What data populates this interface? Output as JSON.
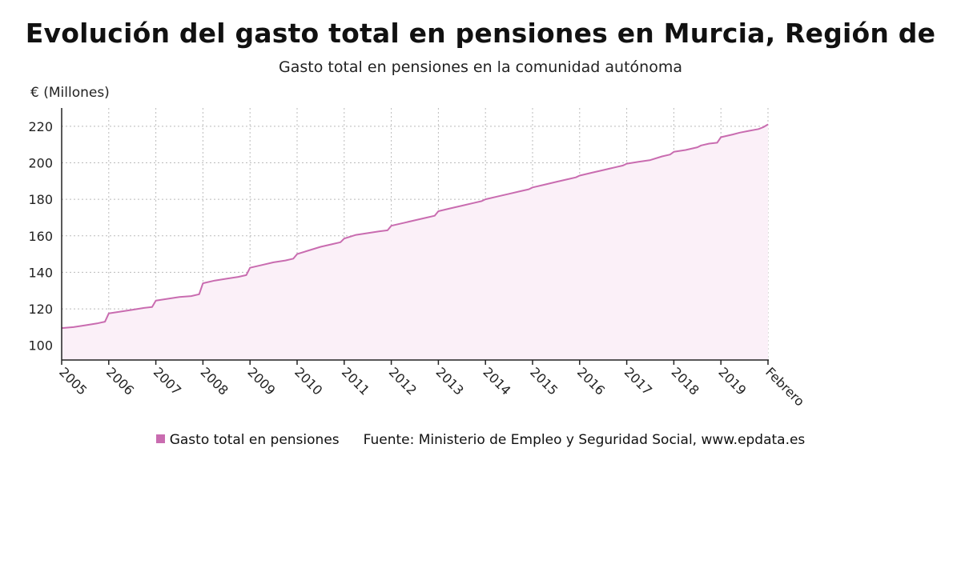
{
  "chart_data": {
    "type": "area",
    "title": "Evolución del gasto total en pensiones en Murcia, Región de",
    "subtitle": "Gasto total en pensiones en la comunidad autónoma",
    "ylabel": "€ (Millones)",
    "xlabel": "",
    "ylim": [
      92,
      230
    ],
    "yticks": [
      100,
      120,
      140,
      160,
      180,
      200,
      220
    ],
    "xticks": [
      "2005",
      "2006",
      "2007",
      "2008",
      "2009",
      "2010",
      "2011",
      "2012",
      "2013",
      "2014",
      "2015",
      "2016",
      "2017",
      "2018",
      "2019",
      "Febrero"
    ],
    "grid": true,
    "colors": {
      "line": "#c96cb0",
      "area": "#fbf0f8",
      "grid": "#bbbbbb"
    },
    "series": [
      {
        "name": "Gasto total en pensiones",
        "x": [
          2005.0,
          2005.25,
          2005.5,
          2005.75,
          2005.92,
          2006.0,
          2006.25,
          2006.5,
          2006.75,
          2006.92,
          2007.0,
          2007.25,
          2007.5,
          2007.75,
          2007.92,
          2008.0,
          2008.25,
          2008.5,
          2008.75,
          2008.92,
          2009.0,
          2009.25,
          2009.5,
          2009.75,
          2009.92,
          2010.0,
          2010.25,
          2010.5,
          2010.75,
          2010.92,
          2011.0,
          2011.25,
          2011.5,
          2011.75,
          2011.92,
          2012.0,
          2012.25,
          2012.5,
          2012.75,
          2012.92,
          2013.0,
          2013.25,
          2013.5,
          2013.75,
          2013.92,
          2014.0,
          2014.25,
          2014.5,
          2014.75,
          2014.92,
          2015.0,
          2015.25,
          2015.5,
          2015.75,
          2015.92,
          2016.0,
          2016.25,
          2016.5,
          2016.75,
          2016.92,
          2017.0,
          2017.25,
          2017.5,
          2017.75,
          2017.92,
          2018.0,
          2018.25,
          2018.5,
          2018.58,
          2018.75,
          2018.92,
          2019.0,
          2019.25,
          2019.4,
          2019.6,
          2019.8,
          2019.9,
          2020.0
        ],
        "values": [
          109.5,
          110.0,
          111.0,
          112.0,
          113.0,
          117.5,
          118.5,
          119.5,
          120.5,
          121.0,
          124.5,
          125.5,
          126.5,
          127.0,
          128.0,
          134.0,
          135.5,
          136.5,
          137.5,
          138.5,
          142.5,
          144.0,
          145.5,
          146.5,
          147.5,
          150.0,
          152.0,
          154.0,
          155.5,
          156.5,
          158.5,
          160.5,
          161.5,
          162.5,
          163.0,
          165.5,
          167.0,
          168.5,
          170.0,
          171.0,
          173.5,
          175.0,
          176.5,
          178.0,
          179.0,
          180.0,
          181.5,
          183.0,
          184.5,
          185.5,
          186.5,
          188.0,
          189.5,
          191.0,
          192.0,
          193.0,
          194.5,
          196.0,
          197.5,
          198.5,
          199.5,
          200.5,
          201.5,
          203.5,
          204.5,
          206.0,
          207.0,
          208.5,
          209.5,
          210.5,
          211.0,
          214.0,
          215.5,
          216.5,
          217.5,
          218.5,
          219.5,
          221.0
        ]
      }
    ]
  },
  "legend": {
    "series_label": "Gasto total en pensiones",
    "source": "Fuente: Ministerio de Empleo y Seguridad Social, www.epdata.es"
  }
}
